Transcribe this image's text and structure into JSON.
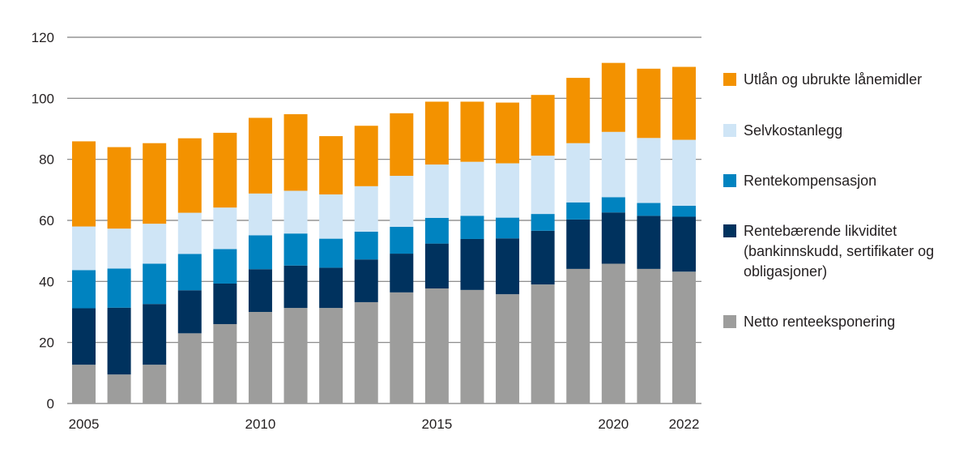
{
  "chart_data": {
    "type": "bar",
    "stacked": true,
    "title": "",
    "xlabel": "",
    "ylabel": "",
    "ylim": [
      0,
      120
    ],
    "yticks": [
      0,
      20,
      40,
      60,
      80,
      100,
      120
    ],
    "grid": true,
    "legend_position": "right",
    "categories": [
      "2005",
      "2006",
      "2007",
      "2008",
      "2009",
      "2010",
      "2011",
      "2012",
      "2013",
      "2014",
      "2015",
      "2016",
      "2017",
      "2018",
      "2019",
      "2020",
      "2021",
      "2022"
    ],
    "xtick_labels": [
      {
        "category": "2005",
        "label": "2005"
      },
      {
        "category": "2010",
        "label": "2010"
      },
      {
        "category": "2015",
        "label": "2015"
      },
      {
        "category": "2020",
        "label": "2020"
      },
      {
        "category": "2022",
        "label": "2022"
      }
    ],
    "series": [
      {
        "name": "Netto renteeksponering",
        "color": "#9d9d9c",
        "values": [
          12.7,
          9.5,
          12.7,
          23.0,
          26.0,
          30.0,
          31.3,
          31.3,
          33.2,
          36.4,
          37.7,
          37.2,
          35.8,
          39.0,
          44.1,
          45.8,
          44.1,
          43.2
        ]
      },
      {
        "name": "Rentebærende likviditet (bankinnskudd, sertifikater og obligasjoner)",
        "color": "#00325e",
        "values": [
          18.5,
          21.9,
          19.9,
          14.1,
          13.3,
          14.0,
          13.9,
          13.2,
          14.0,
          12.7,
          14.7,
          16.7,
          18.3,
          17.6,
          16.2,
          16.8,
          17.4,
          18.0
        ]
      },
      {
        "name": "Rentekompensasjon",
        "color": "#0083c0",
        "values": [
          12.5,
          12.8,
          13.2,
          11.9,
          11.3,
          11.1,
          10.5,
          9.5,
          9.1,
          8.8,
          8.4,
          7.6,
          6.8,
          5.5,
          5.6,
          5.0,
          4.2,
          3.6
        ]
      },
      {
        "name": "Selvkostanlegg",
        "color": "#cfe5f6",
        "values": [
          14.3,
          13.1,
          13.1,
          13.5,
          13.6,
          13.7,
          14.0,
          14.5,
          14.9,
          16.7,
          17.5,
          17.7,
          17.8,
          19.1,
          19.4,
          21.4,
          21.3,
          21.6
        ]
      },
      {
        "name": "Utlån og ubrukte lånemidler",
        "color": "#f39200",
        "values": [
          27.9,
          26.7,
          26.4,
          24.4,
          24.5,
          24.8,
          25.1,
          19.1,
          19.8,
          20.5,
          20.6,
          19.7,
          19.9,
          19.9,
          21.4,
          22.6,
          22.7,
          23.9
        ]
      }
    ],
    "legend_order": [
      "Utlån og ubrukte lånemidler",
      "Selvkostanlegg",
      "Rentekompensasjon",
      "Rentebærende likviditet (bankinnskudd, sertifikater og obligasjoner)",
      "Netto renteeksponering"
    ]
  },
  "legend": {
    "items": [
      {
        "label": "Utlån og ubrukte lånemidler",
        "color": "#f39200"
      },
      {
        "label": "Selvkostanlegg",
        "color": "#cfe5f6"
      },
      {
        "label": "Rentekompensasjon",
        "color": "#0083c0"
      },
      {
        "label": "Rentebærende likviditet (bankinnskudd, sertifikater og obligasjoner)",
        "color": "#00325e"
      },
      {
        "label": "Netto renteeksponering",
        "color": "#9d9d9c"
      }
    ]
  },
  "colors": {
    "gridline": "#7f7f7f",
    "axis_text": "#231f20"
  }
}
